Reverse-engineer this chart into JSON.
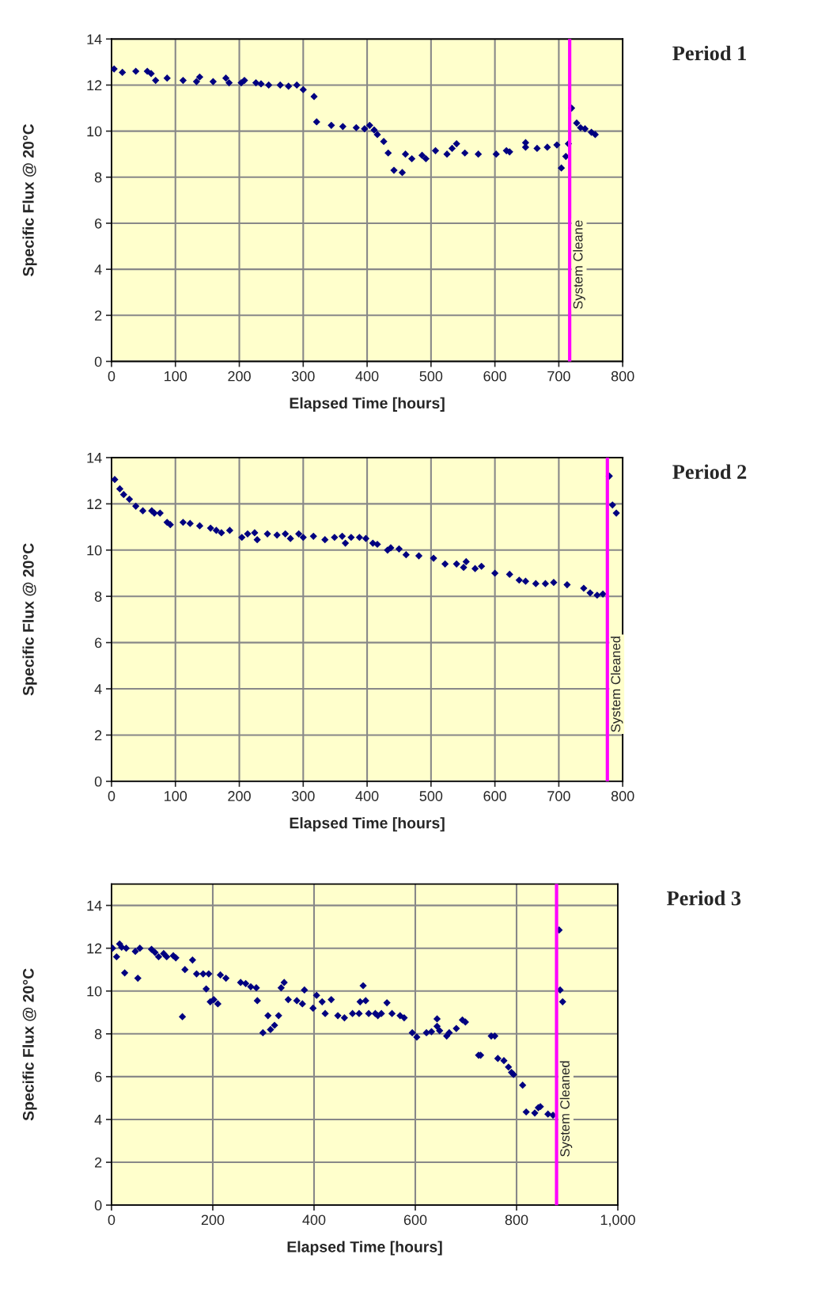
{
  "chart_data": [
    {
      "type": "scatter",
      "annotations": [
        "Period 1"
      ],
      "xlabel": "Elapsed Time [hours]",
      "ylabel": "Specific Flux @ 20°C",
      "xlim": [
        0,
        800
      ],
      "xticks": [
        0,
        100,
        200,
        300,
        400,
        500,
        600,
        700,
        800
      ],
      "ylim": [
        0,
        14
      ],
      "yticks": [
        0,
        2,
        4,
        6,
        8,
        10,
        12,
        14
      ],
      "grid": true,
      "marker": "diamond",
      "legend": false,
      "ref_lines": [
        {
          "axis": "x",
          "value": 717,
          "label": "System Cleane",
          "color": "#ff00ff"
        }
      ],
      "series": [
        {
          "color": "#000080",
          "x": [
            4,
            17,
            38,
            56,
            62,
            69,
            87,
            112,
            133,
            138,
            159,
            179,
            184,
            203,
            208,
            226,
            234,
            246,
            264,
            277,
            290,
            300,
            317,
            321,
            344,
            362,
            383,
            396,
            404,
            411,
            416,
            426,
            433,
            442,
            455,
            460,
            470,
            486,
            492,
            507,
            525,
            533,
            540,
            553,
            574,
            602,
            618,
            623,
            648,
            648,
            666,
            682,
            697,
            704,
            711,
            715,
            720,
            728,
            734,
            741,
            751,
            757
          ],
          "values": [
            12.7,
            12.55,
            12.6,
            12.6,
            12.5,
            12.2,
            12.3,
            12.2,
            12.15,
            12.35,
            12.15,
            12.3,
            12.1,
            12.1,
            12.2,
            12.1,
            12.05,
            12.0,
            12.0,
            11.95,
            12.0,
            11.8,
            11.5,
            10.4,
            10.25,
            10.2,
            10.15,
            10.1,
            10.25,
            10.05,
            9.85,
            9.55,
            9.05,
            8.3,
            8.2,
            9.0,
            8.8,
            8.95,
            8.8,
            9.15,
            9.0,
            9.25,
            9.45,
            9.05,
            9.0,
            9.0,
            9.15,
            9.1,
            9.5,
            9.3,
            9.25,
            9.3,
            9.4,
            8.4,
            8.9,
            9.45,
            11.0,
            10.35,
            10.15,
            10.1,
            9.95,
            9.85
          ]
        }
      ]
    },
    {
      "type": "scatter",
      "annotations": [
        "Period 2"
      ],
      "xlabel": "Elapsed Time [hours]",
      "ylabel": "Specific Flux @ 20°C",
      "xlim": [
        0,
        800
      ],
      "xticks": [
        0,
        100,
        200,
        300,
        400,
        500,
        600,
        700,
        800
      ],
      "ylim": [
        0,
        14
      ],
      "yticks": [
        0,
        2,
        4,
        6,
        8,
        10,
        12,
        14
      ],
      "grid": true,
      "marker": "diamond",
      "legend": false,
      "ref_lines": [
        {
          "axis": "x",
          "value": 776,
          "label": "System Cleaned",
          "color": "#ff00ff"
        }
      ],
      "series": [
        {
          "color": "#000080",
          "x": [
            5,
            13,
            19,
            28,
            38,
            49,
            63,
            67,
            76,
            87,
            92,
            112,
            123,
            138,
            155,
            164,
            172,
            185,
            204,
            213,
            224,
            228,
            244,
            259,
            272,
            280,
            293,
            300,
            316,
            334,
            349,
            361,
            366,
            375,
            388,
            398,
            409,
            416,
            432,
            437,
            450,
            461,
            481,
            504,
            522,
            540,
            551,
            555,
            569,
            579,
            600,
            623,
            638,
            648,
            664,
            679,
            692,
            713,
            739,
            749,
            760,
            769,
            779,
            784,
            790
          ],
          "values": [
            13.05,
            12.65,
            12.4,
            12.2,
            11.9,
            11.7,
            11.7,
            11.6,
            11.6,
            11.2,
            11.1,
            11.2,
            11.15,
            11.05,
            10.95,
            10.85,
            10.75,
            10.85,
            10.55,
            10.7,
            10.75,
            10.45,
            10.7,
            10.65,
            10.7,
            10.5,
            10.7,
            10.55,
            10.6,
            10.45,
            10.55,
            10.6,
            10.3,
            10.55,
            10.55,
            10.5,
            10.3,
            10.25,
            10.0,
            10.1,
            10.05,
            9.8,
            9.75,
            9.65,
            9.4,
            9.4,
            9.25,
            9.5,
            9.2,
            9.3,
            9.0,
            8.95,
            8.7,
            8.65,
            8.55,
            8.55,
            8.6,
            8.5,
            8.35,
            8.15,
            8.05,
            8.1,
            13.2,
            11.95,
            11.6
          ]
        }
      ]
    },
    {
      "type": "scatter",
      "annotations": [
        "Period 3"
      ],
      "xlabel": "Elapsed Time [hours]",
      "ylabel": "Specific Flux @ 20°C",
      "xlim": [
        0,
        1000
      ],
      "xticks": [
        0,
        200,
        400,
        600,
        800,
        {
          "value": 1000,
          "label": "1,000"
        }
      ],
      "ylim": [
        0,
        15
      ],
      "yticks": [
        0,
        2,
        4,
        6,
        8,
        10,
        12,
        14
      ],
      "grid": true,
      "marker": "diamond",
      "legend": false,
      "ref_lines": [
        {
          "axis": "x",
          "value": 879,
          "label": "System Cleaned",
          "color": "#ff00ff"
        }
      ],
      "series": [
        {
          "color": "#000080",
          "x": [
            2,
            10,
            16,
            20,
            26,
            29,
            47,
            52,
            56,
            79,
            86,
            93,
            103,
            109,
            122,
            127,
            140,
            145,
            160,
            168,
            181,
            192,
            187,
            195,
            202,
            210,
            215,
            226,
            255,
            265,
            275,
            286,
            288,
            299,
            309,
            314,
            322,
            330,
            335,
            341,
            349,
            366,
            377,
            381,
            398,
            405,
            416,
            422,
            434,
            447,
            460,
            476,
            489,
            491,
            497,
            502,
            508,
            521,
            526,
            533,
            544,
            554,
            570,
            578,
            594,
            603,
            622,
            632,
            643,
            643,
            648,
            662,
            667,
            681,
            693,
            699,
            725,
            729,
            750,
            757,
            763,
            775,
            784,
            790,
            794,
            812,
            819,
            836,
            843,
            847,
            862,
            872,
            884,
            886,
            891
          ],
          "values": [
            12.0,
            11.6,
            12.2,
            12.05,
            10.85,
            12.0,
            11.85,
            10.6,
            12.0,
            11.95,
            11.8,
            11.6,
            11.75,
            11.6,
            11.65,
            11.55,
            8.8,
            11.0,
            11.45,
            10.8,
            10.8,
            10.8,
            10.1,
            9.5,
            9.6,
            9.4,
            10.75,
            10.6,
            10.4,
            10.35,
            10.2,
            10.15,
            9.55,
            8.05,
            8.85,
            8.2,
            8.4,
            8.85,
            10.15,
            10.4,
            9.6,
            9.55,
            9.4,
            10.05,
            9.2,
            9.8,
            9.5,
            8.95,
            9.6,
            8.85,
            8.75,
            8.95,
            8.95,
            9.5,
            10.25,
            9.55,
            8.95,
            8.95,
            8.85,
            8.95,
            9.45,
            8.95,
            8.85,
            8.75,
            8.05,
            7.85,
            8.05,
            8.1,
            8.7,
            8.35,
            8.15,
            7.9,
            8.05,
            8.25,
            8.65,
            8.55,
            7.0,
            7.0,
            7.9,
            7.9,
            6.85,
            6.75,
            6.45,
            6.2,
            6.1,
            5.6,
            4.35,
            4.3,
            4.55,
            4.6,
            4.25,
            4.2,
            12.85,
            10.05,
            9.5
          ]
        }
      ]
    }
  ]
}
